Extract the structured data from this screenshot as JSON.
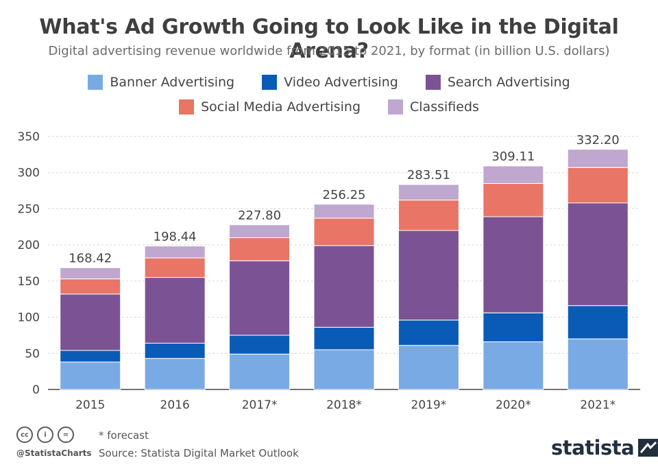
{
  "header": {
    "title": "What's Ad Growth Going to Look Like in the Digital Arena?",
    "subtitle": "Digital advertising revenue worldwide from 2015 to 2021, by format (in billion U.S. dollars)"
  },
  "legend": {
    "row1": [
      {
        "label": "Banner Advertising",
        "color": "#7aaae3"
      },
      {
        "label": "Video Advertising",
        "color": "#0a5bb5"
      },
      {
        "label": "Search Advertising",
        "color": "#7b5394"
      }
    ],
    "row2": [
      {
        "label": "Social Media Advertising",
        "color": "#e87565"
      },
      {
        "label": "Classifieds",
        "color": "#bfa7cf"
      }
    ]
  },
  "chart_data": {
    "type": "bar",
    "stacked": true,
    "categories": [
      "2015",
      "2016",
      "2017*",
      "2018*",
      "2019*",
      "2020*",
      "2021*"
    ],
    "series": [
      {
        "name": "Banner Advertising",
        "color": "#7aaae3",
        "values": [
          38,
          43,
          49,
          55,
          61,
          66,
          70
        ]
      },
      {
        "name": "Video Advertising",
        "color": "#0a5bb5",
        "values": [
          16,
          21,
          26,
          31,
          35,
          40,
          46
        ]
      },
      {
        "name": "Search Advertising",
        "color": "#7b5394",
        "values": [
          78,
          91,
          103,
          113,
          124,
          133,
          142
        ]
      },
      {
        "name": "Social Media Advertising",
        "color": "#e87565",
        "values": [
          21,
          27,
          32,
          38,
          42,
          46,
          49
        ]
      },
      {
        "name": "Classifieds",
        "color": "#bfa7cf",
        "values": [
          15.42,
          16.44,
          17.8,
          19.25,
          21.51,
          24.11,
          25.2
        ]
      }
    ],
    "totals": [
      "168.42",
      "198.44",
      "227.80",
      "256.25",
      "283.51",
      "309.11",
      "332.20"
    ],
    "yticks": [
      0,
      50,
      100,
      150,
      200,
      250,
      300,
      350
    ],
    "ylim": [
      0,
      350
    ],
    "grid": true
  },
  "footer": {
    "note": "* forecast",
    "source": "Source: Statista Digital Market Outlook",
    "handle": "@StatistaCharts",
    "brand": "statista",
    "cc_icons": [
      {
        "name": "cc-icon",
        "glyph": "cc"
      },
      {
        "name": "by-icon",
        "glyph": "i"
      },
      {
        "name": "nd-icon",
        "glyph": "="
      }
    ]
  }
}
